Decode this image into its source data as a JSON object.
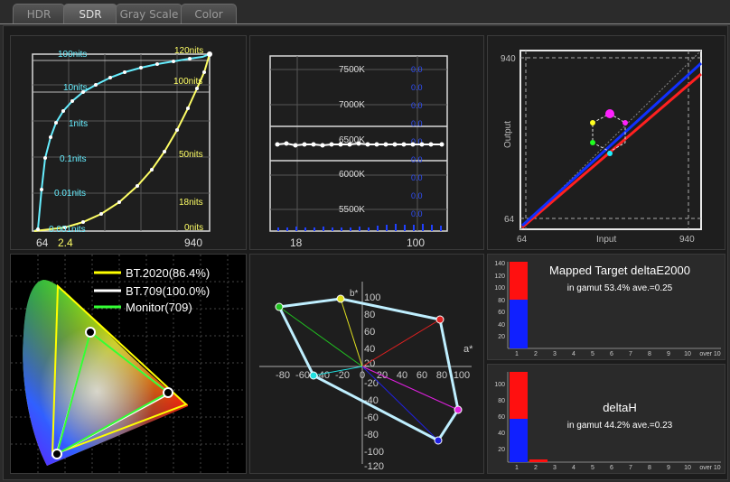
{
  "tabs": [
    {
      "label": "HDR",
      "active": false
    },
    {
      "label": "SDR",
      "active": true
    },
    {
      "label": "Gray Scale",
      "active": false
    },
    {
      "label": "Color",
      "active": false
    }
  ],
  "gamma": {
    "nits_cyan": [
      "100nits",
      "10nits",
      "1nits",
      "0.1nits",
      "0.01nits",
      "0.001nits"
    ],
    "nits_yellow": [
      "120nits",
      "100nits",
      "50nits",
      "18nits",
      "0nits"
    ],
    "x_labels": [
      "64",
      "940"
    ],
    "gamma_value": "2.4"
  },
  "colortemp": {
    "y_labels": [
      "7500K",
      "7000K",
      "6500K",
      "6000K",
      "5500K"
    ],
    "x_labels": [
      "18",
      "100"
    ]
  },
  "mapping": {
    "ylabel": "Output",
    "xlabel": "Input",
    "y_ticks": [
      "940",
      "64"
    ],
    "x_ticks": [
      "64",
      "940"
    ]
  },
  "cie": {
    "legend": [
      {
        "label": "BT.2020(86.4%)",
        "color": "#ffff00"
      },
      {
        "label": "BT.709(100.0%)",
        "color": "#ffffff"
      },
      {
        "label": "Monitor(709)",
        "color": "#33ff33"
      }
    ]
  },
  "ab": {
    "a_label": "a*",
    "b_label": "b*",
    "x_ticks": [
      "-80",
      "-60",
      "-40",
      "-20",
      "0",
      "20",
      "40",
      "60",
      "80",
      "100"
    ],
    "y_ticks": [
      "100",
      "80",
      "60",
      "40",
      "20",
      "-20",
      "-40",
      "-60",
      "-80",
      "-100",
      "-120"
    ]
  },
  "de2000": {
    "title": "Mapped Target deltaE2000",
    "subtitle": "in gamut 53.4% ave.=0.25",
    "y_ticks": [
      "140",
      "120",
      "100",
      "80",
      "60",
      "40",
      "20"
    ],
    "x_ticks": [
      "1",
      "2",
      "3",
      "4",
      "5",
      "6",
      "7",
      "8",
      "9",
      "10",
      "over 10"
    ]
  },
  "deltah": {
    "title": "deltaH",
    "subtitle": "in gamut 44.2% ave.=0.23",
    "y_ticks": [
      "100",
      "80",
      "60",
      "40",
      "20"
    ],
    "x_ticks": [
      "1",
      "2",
      "3",
      "4",
      "5",
      "6",
      "7",
      "8",
      "9",
      "10",
      "over 10"
    ]
  },
  "colors": {
    "cyan": "#66eeff",
    "yellow": "#ffff66",
    "red": "#ff2020",
    "blue": "#1030ff"
  }
}
